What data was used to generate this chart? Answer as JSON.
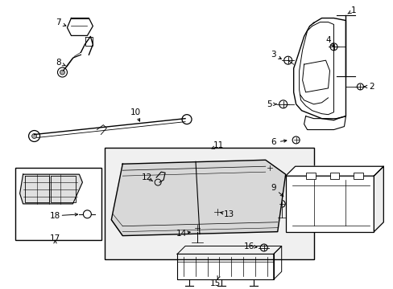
{
  "background_color": "#ffffff",
  "line_color": "#000000",
  "text_color": "#000000",
  "figure_width": 4.89,
  "figure_height": 3.6,
  "dpi": 100
}
